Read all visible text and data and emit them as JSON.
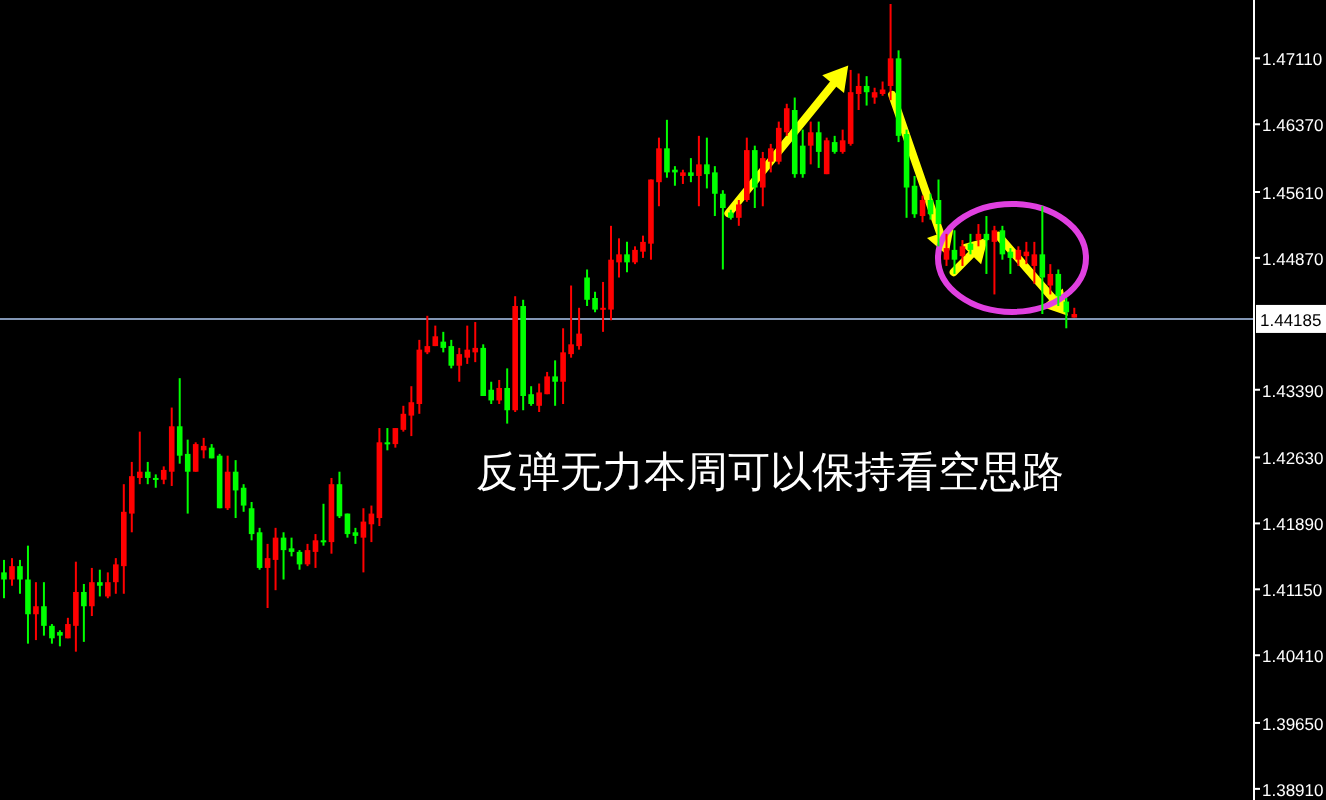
{
  "chart_data": {
    "type": "candlestick",
    "categories": [
      null,
      null,
      null,
      null,
      null,
      null,
      null,
      null,
      null,
      null,
      null,
      null,
      null,
      null,
      null,
      null,
      null,
      null,
      null,
      null,
      null,
      null,
      null,
      null,
      null,
      null,
      null,
      null,
      null,
      null,
      null,
      null,
      null,
      null,
      null,
      null,
      null,
      null,
      null,
      null,
      null,
      null,
      null,
      null,
      null,
      null,
      null,
      null,
      null,
      null,
      null,
      null,
      null,
      null,
      null,
      null,
      null,
      null,
      null,
      null,
      null,
      null,
      null,
      null,
      null,
      null,
      null,
      null,
      null,
      null,
      null,
      null,
      null,
      null,
      null,
      null,
      null,
      null,
      null,
      null,
      null,
      null,
      null,
      null,
      null,
      null,
      null,
      null,
      null,
      null,
      null,
      null,
      null,
      null,
      null,
      null,
      null,
      null,
      null,
      null,
      null,
      null,
      null,
      null,
      null,
      null,
      null,
      null,
      null,
      null,
      null,
      null,
      null,
      null,
      null,
      null,
      null,
      null,
      null,
      null,
      null,
      null,
      null,
      null,
      null,
      null,
      null,
      null,
      null,
      null,
      null,
      null,
      null,
      null,
      null,
      null,
      null,
      null,
      null,
      null,
      null,
      null,
      null,
      null,
      null,
      null,
      null,
      null,
      null,
      null,
      null,
      null,
      null,
      null,
      null,
      null,
      null
    ],
    "ohlc": [
      [
        1.4126,
        1.4148,
        1.4105,
        1.4134
      ],
      [
        1.4141,
        1.415,
        1.4119,
        1.4126
      ],
      [
        1.4126,
        1.4148,
        1.411,
        1.4141
      ],
      [
        1.4087,
        1.4164,
        1.4054,
        1.4126
      ],
      [
        1.4096,
        1.4123,
        1.4058,
        1.4087
      ],
      [
        1.4074,
        1.4123,
        1.4063,
        1.4096
      ],
      [
        1.406,
        1.4076,
        1.4054,
        1.4074
      ],
      [
        1.4063,
        1.4069,
        1.4051,
        1.4067
      ],
      [
        1.4076,
        1.4083,
        1.406,
        1.406
      ],
      [
        1.4112,
        1.4146,
        1.4045,
        1.4074
      ],
      [
        1.4096,
        1.4121,
        1.4056,
        1.4112
      ],
      [
        1.4123,
        1.4139,
        1.4085,
        1.4096
      ],
      [
        1.4119,
        1.4137,
        1.4107,
        1.4123
      ],
      [
        1.4123,
        1.4134,
        1.4105,
        1.4107
      ],
      [
        1.4143,
        1.415,
        1.411,
        1.4123
      ],
      [
        1.4202,
        1.4233,
        1.411,
        1.4141
      ],
      [
        1.4242,
        1.4258,
        1.4179,
        1.42
      ],
      [
        1.4247,
        1.4292,
        1.4233,
        1.424
      ],
      [
        1.424,
        1.4258,
        1.4233,
        1.4247
      ],
      [
        1.4238,
        1.4244,
        1.4229,
        1.424
      ],
      [
        1.4249,
        1.4253,
        1.4233,
        1.4238
      ],
      [
        1.4298,
        1.4319,
        1.4231,
        1.4247
      ],
      [
        1.4265,
        1.4352,
        1.4256,
        1.4298
      ],
      [
        1.4247,
        1.4283,
        1.42,
        1.4267
      ],
      [
        1.4278,
        1.428,
        1.4247,
        1.4247
      ],
      [
        1.4276,
        1.4285,
        1.4262,
        1.4271
      ],
      [
        1.4262,
        1.4278,
        1.4262,
        1.4274
      ],
      [
        1.4206,
        1.4267,
        1.4206,
        1.4265
      ],
      [
        1.4247,
        1.4265,
        1.4204,
        1.4206
      ],
      [
        1.4226,
        1.426,
        1.4195,
        1.4247
      ],
      [
        1.4209,
        1.4233,
        1.4202,
        1.4229
      ],
      [
        1.4177,
        1.4213,
        1.417,
        1.4206
      ],
      [
        1.4139,
        1.4184,
        1.4137,
        1.4179
      ],
      [
        1.415,
        1.4166,
        1.4094,
        1.4139
      ],
      [
        1.4173,
        1.4184,
        1.4114,
        1.4148
      ],
      [
        1.4159,
        1.4179,
        1.4126,
        1.4173
      ],
      [
        1.4157,
        1.4173,
        1.4152,
        1.4161
      ],
      [
        1.4143,
        1.4159,
        1.4137,
        1.4157
      ],
      [
        1.4159,
        1.4166,
        1.4141,
        1.4143
      ],
      [
        1.417,
        1.4177,
        1.4139,
        1.4157
      ],
      [
        1.4168,
        1.4211,
        1.4164,
        1.417
      ],
      [
        1.4233,
        1.424,
        1.4155,
        1.4168
      ],
      [
        1.4197,
        1.4247,
        1.4195,
        1.4233
      ],
      [
        1.4177,
        1.42,
        1.4173,
        1.42
      ],
      [
        1.4175,
        1.4184,
        1.4166,
        1.4179
      ],
      [
        1.4191,
        1.4206,
        1.4134,
        1.4173
      ],
      [
        1.42,
        1.4209,
        1.4168,
        1.4188
      ],
      [
        1.428,
        1.4296,
        1.4186,
        1.4195
      ],
      [
        1.4278,
        1.4296,
        1.4271,
        1.428
      ],
      [
        1.4296,
        1.4296,
        1.4274,
        1.4278
      ],
      [
        1.4312,
        1.4321,
        1.4292,
        1.4294
      ],
      [
        1.4325,
        1.4343,
        1.4287,
        1.431
      ],
      [
        1.4384,
        1.4395,
        1.4312,
        1.4323
      ],
      [
        1.4388,
        1.4422,
        1.4379,
        1.4381
      ],
      [
        1.4399,
        1.4411,
        1.4388,
        1.4388
      ],
      [
        1.4386,
        1.4404,
        1.4381,
        1.4393
      ],
      [
        1.4366,
        1.4395,
        1.4363,
        1.4388
      ],
      [
        1.4379,
        1.4386,
        1.4348,
        1.4366
      ],
      [
        1.4384,
        1.4411,
        1.4368,
        1.4375
      ],
      [
        1.4386,
        1.4415,
        1.437,
        1.4381
      ],
      [
        1.4332,
        1.439,
        1.4332,
        1.4386
      ],
      [
        1.4327,
        1.4348,
        1.4323,
        1.4339
      ],
      [
        1.4341,
        1.435,
        1.4323,
        1.4327
      ],
      [
        1.4316,
        1.4363,
        1.4301,
        1.4341
      ],
      [
        1.4433,
        1.4444,
        1.4314,
        1.4316
      ],
      [
        1.4332,
        1.444,
        1.4316,
        1.4433
      ],
      [
        1.4323,
        1.4343,
        1.4321,
        1.4334
      ],
      [
        1.4336,
        1.4346,
        1.4314,
        1.4321
      ],
      [
        1.4354,
        1.4359,
        1.4334,
        1.4334
      ],
      [
        1.4348,
        1.4372,
        1.4321,
        1.4354
      ],
      [
        1.4381,
        1.4408,
        1.4323,
        1.4348
      ],
      [
        1.439,
        1.4456,
        1.4375,
        1.4379
      ],
      [
        1.4402,
        1.4431,
        1.4384,
        1.4388
      ],
      [
        1.444,
        1.4474,
        1.4433,
        1.4465
      ],
      [
        1.4429,
        1.4449,
        1.4426,
        1.4442
      ],
      [
        1.4431,
        1.446,
        1.4404,
        1.4429
      ],
      [
        1.4485,
        1.4523,
        1.4417,
        1.4429
      ],
      [
        1.4491,
        1.4509,
        1.4465,
        1.4482
      ],
      [
        1.4482,
        1.4505,
        1.4471,
        1.4491
      ],
      [
        1.4496,
        1.45,
        1.448,
        1.4482
      ],
      [
        1.4505,
        1.4512,
        1.4487,
        1.4494
      ],
      [
        1.4575,
        1.4575,
        1.4485,
        1.4503
      ],
      [
        1.461,
        1.4622,
        1.4545,
        1.4572
      ],
      [
        1.4583,
        1.4642,
        1.4577,
        1.461
      ],
      [
        1.4583,
        1.459,
        1.4568,
        1.4586
      ],
      [
        1.4583,
        1.4586,
        1.457,
        1.4579
      ],
      [
        1.4579,
        1.4599,
        1.4572,
        1.4583
      ],
      [
        1.4592,
        1.4624,
        1.4545,
        1.4579
      ],
      [
        1.4581,
        1.4622,
        1.4565,
        1.4592
      ],
      [
        1.4559,
        1.459,
        1.4534,
        1.4583
      ],
      [
        1.4543,
        1.4563,
        1.4474,
        1.4559
      ],
      [
        1.4532,
        1.4541,
        1.453,
        1.4538
      ],
      [
        1.4547,
        1.4552,
        1.4523,
        1.4532
      ],
      [
        1.4608,
        1.4622,
        1.455,
        1.4552
      ],
      [
        1.4566,
        1.4613,
        1.4543,
        1.4608
      ],
      [
        1.4599,
        1.4606,
        1.4545,
        1.4566
      ],
      [
        1.461,
        1.4615,
        1.4583,
        1.4595
      ],
      [
        1.4633,
        1.464,
        1.4592,
        1.4595
      ],
      [
        1.4655,
        1.466,
        1.4624,
        1.4628
      ],
      [
        1.4581,
        1.4667,
        1.4577,
        1.4653
      ],
      [
        1.4581,
        1.4631,
        1.4577,
        1.4613
      ],
      [
        1.4628,
        1.464,
        1.4592,
        1.4613
      ],
      [
        1.4606,
        1.464,
        1.4588,
        1.4628
      ],
      [
        1.4619,
        1.4622,
        1.4581,
        1.4581
      ],
      [
        1.4606,
        1.4624,
        1.4604,
        1.4617
      ],
      [
        1.4619,
        1.4631,
        1.4604,
        1.4606
      ],
      [
        1.4673,
        1.4698,
        1.4613,
        1.4615
      ],
      [
        1.468,
        1.4694,
        1.4653,
        1.4671
      ],
      [
        1.4673,
        1.4691,
        1.4658,
        1.468
      ],
      [
        1.4673,
        1.4678,
        1.466,
        1.4667
      ],
      [
        1.4676,
        1.4685,
        1.4669,
        1.4671
      ],
      [
        1.4711,
        1.4772,
        1.4664,
        1.468
      ],
      [
        1.4624,
        1.472,
        1.4617,
        1.4711
      ],
      [
        1.4566,
        1.4631,
        1.4532,
        1.4626
      ],
      [
        1.4536,
        1.4579,
        1.4532,
        1.4568
      ],
      [
        1.4552,
        1.4557,
        1.4527,
        1.4534
      ],
      [
        1.4536,
        1.4559,
        1.453,
        1.4552
      ],
      [
        1.4525,
        1.4575,
        1.45,
        1.4552
      ],
      [
        1.4498,
        1.4514,
        1.4478,
        1.4485
      ],
      [
        1.4485,
        1.4518,
        1.4469,
        1.4496
      ],
      [
        1.45,
        1.4507,
        1.4478,
        1.4489
      ],
      [
        1.4496,
        1.4514,
        1.4491,
        1.4503
      ],
      [
        1.4514,
        1.4525,
        1.45,
        1.4507
      ],
      [
        1.4507,
        1.4534,
        1.4469,
        1.4514
      ],
      [
        1.4518,
        1.4523,
        1.4446,
        1.4505
      ],
      [
        1.4491,
        1.4523,
        1.4485,
        1.4518
      ],
      [
        1.4487,
        1.4498,
        1.4469,
        1.4494
      ],
      [
        1.4496,
        1.45,
        1.4478,
        1.4485
      ],
      [
        1.4494,
        1.4505,
        1.448,
        1.4489
      ],
      [
        1.4491,
        1.4505,
        1.4458,
        1.4478
      ],
      [
        1.4465,
        1.4545,
        1.4424,
        1.4491
      ],
      [
        1.4469,
        1.448,
        1.4446,
        1.4456
      ],
      [
        1.4444,
        1.4474,
        1.4433,
        1.4469
      ],
      [
        1.4426,
        1.4442,
        1.4408,
        1.4438
      ],
      [
        1.4424,
        1.4431,
        1.442,
        1.442
      ],
      null,
      null,
      null,
      null,
      null,
      null,
      null,
      null,
      null,
      null,
      null,
      null,
      null,
      null,
      null,
      null,
      null,
      null,
      null,
      null,
      null,
      null
    ],
    "colors": [
      "#00ff00",
      "#ff0000",
      "#00ff00",
      "#00ff00",
      "#ff0000",
      "#00ff00",
      "#00ff00",
      "#00ff00",
      "#ff0000",
      "#ff0000",
      "#00ff00",
      "#ff0000",
      "#00ff00",
      "#ff0000",
      "#ff0000",
      "#ff0000",
      "#ff0000",
      "#ff0000",
      "#00ff00",
      "#00ff00",
      "#ff0000",
      "#ff0000",
      "#00ff00",
      "#00ff00",
      "#ff0000",
      "#ff0000",
      "#00ff00",
      "#00ff00",
      "#ff0000",
      "#00ff00",
      "#00ff00",
      "#00ff00",
      "#00ff00",
      "#ff0000",
      "#ff0000",
      "#00ff00",
      "#00ff00",
      "#00ff00",
      "#ff0000",
      "#ff0000",
      "#00ff00",
      "#ff0000",
      "#00ff00",
      "#00ff00",
      "#00ff00",
      "#ff0000",
      "#ff0000",
      "#ff0000",
      "#00ff00",
      "#ff0000",
      "#ff0000",
      "#ff0000",
      "#ff0000",
      "#ff0000",
      "#ff0000",
      "#00ff00",
      "#00ff00",
      "#ff0000",
      "#ff0000",
      "#ff0000",
      "#00ff00",
      "#00ff00",
      "#ff0000",
      "#00ff00",
      "#ff0000",
      "#00ff00",
      "#00ff00",
      "#ff0000",
      "#ff0000",
      "#00ff00",
      "#ff0000",
      "#ff0000",
      "#ff0000",
      "#00ff00",
      "#00ff00",
      "#ff0000",
      "#ff0000",
      "#ff0000",
      "#00ff00",
      "#ff0000",
      "#ff0000",
      "#ff0000",
      "#ff0000",
      "#00ff00",
      "#00ff00",
      "#ff0000",
      "#00ff00",
      "#ff0000",
      "#00ff00",
      "#00ff00",
      "#00ff00",
      "#00ff00",
      "#ff0000",
      "#ff0000",
      "#00ff00",
      "#ff0000",
      "#ff0000",
      "#ff0000",
      "#ff0000",
      "#00ff00",
      "#00ff00",
      "#ff0000",
      "#00ff00",
      "#ff0000",
      "#00ff00",
      "#ff0000",
      "#ff0000",
      "#ff0000",
      "#00ff00",
      "#ff0000",
      "#ff0000",
      "#ff0000",
      "#00ff00",
      "#00ff00",
      "#00ff00",
      "#ff0000",
      "#00ff00",
      "#00ff00",
      "#ff0000",
      "#00ff00",
      "#ff0000",
      "#00ff00",
      "#ff0000",
      "#00ff00",
      "#ff0000",
      "#00ff00",
      "#00ff00",
      "#ff0000",
      "#ff0000",
      "#ff0000",
      "#00ff00",
      "#ff0000",
      "#00ff00",
      "#00ff00",
      "#ff0000",
      null,
      null,
      null,
      null,
      null,
      null,
      null,
      null,
      null,
      null,
      null,
      null,
      null,
      null,
      null,
      null,
      null,
      null,
      null,
      null,
      null,
      null
    ],
    "ylim": [
      1.38785,
      1.47765
    ],
    "yticks": [
      {
        "value": 1.4711,
        "label": "1.47110"
      },
      {
        "value": 1.4637,
        "label": "1.46370"
      },
      {
        "value": 1.4561,
        "label": "1.45610"
      },
      {
        "value": 1.4487,
        "label": "1.44870"
      },
      {
        "value": 1.4339,
        "label": "1.43390"
      },
      {
        "value": 1.4263,
        "label": "1.42630"
      },
      {
        "value": 1.4189,
        "label": "1.41890"
      },
      {
        "value": 1.4115,
        "label": "1.41150"
      },
      {
        "value": 1.4041,
        "label": "1.40410"
      },
      {
        "value": 1.3965,
        "label": "1.39650"
      },
      {
        "value": 1.3891,
        "label": "1.38910"
      }
    ],
    "ref_lines": [
      {
        "axis": "y",
        "value": 1.44185,
        "label": "1.44185",
        "color": "#8296b4"
      }
    ],
    "annotations": [
      "反弹无力本周可以保持看空思路"
    ],
    "tick_labels": "y"
  }
}
